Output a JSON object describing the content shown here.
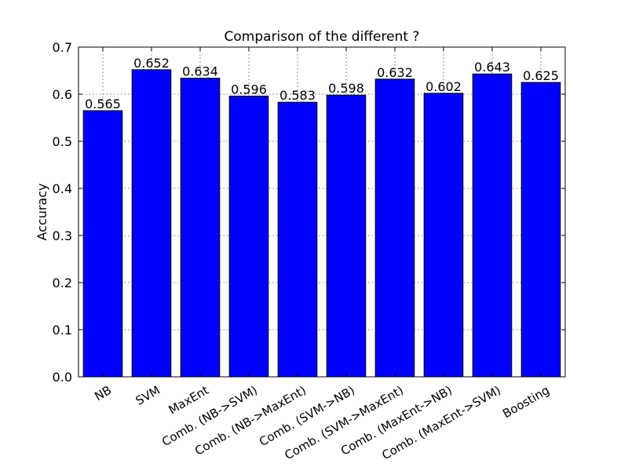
{
  "chart_data": {
    "type": "bar",
    "title": "Comparison of the different ?",
    "xlabel": "",
    "ylabel": "Accuracy",
    "ylim": [
      0.0,
      0.7
    ],
    "yticks": [
      "0.0",
      "0.1",
      "0.2",
      "0.3",
      "0.4",
      "0.5",
      "0.6",
      "0.7"
    ],
    "categories": [
      "NB",
      "SVM",
      "MaxEnt",
      "Comb. (NB->SVM)",
      "Comb. (NB->MaxEnt)",
      "Comb. (SVM->NB)",
      "Comb. (SVM->MaxEnt)",
      "Comb. (MaxEnt->NB)",
      "Comb. (MaxEnt->SVM)",
      "Boosting"
    ],
    "values": [
      0.565,
      0.652,
      0.634,
      0.596,
      0.583,
      0.598,
      0.632,
      0.602,
      0.643,
      0.625
    ],
    "value_labels": [
      "0.565",
      "0.652",
      "0.634",
      "0.596",
      "0.583",
      "0.598",
      "0.632",
      "0.602",
      "0.643",
      "0.625"
    ],
    "grid": true,
    "bar_color": "#0000ff"
  }
}
